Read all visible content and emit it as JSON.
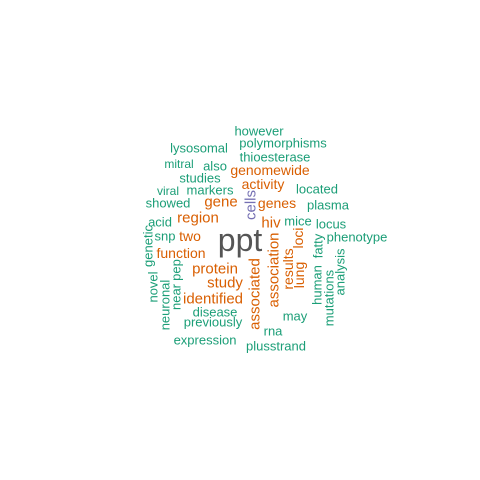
{
  "colors": {
    "teal": "#1b9e77",
    "orange": "#d95f02",
    "purple": "#7570b3",
    "gray": "#555555"
  },
  "words": [
    {
      "id": "ppt",
      "text": "ppt",
      "color": "gray"
    },
    {
      "id": "however",
      "text": "however",
      "color": "teal"
    },
    {
      "id": "polymorphisms",
      "text": "polymorphisms",
      "color": "teal"
    },
    {
      "id": "lysosomal",
      "text": "lysosomal",
      "color": "teal"
    },
    {
      "id": "thioesterase",
      "text": "thioesterase",
      "color": "teal"
    },
    {
      "id": "mitral",
      "text": "mitral",
      "color": "teal"
    },
    {
      "id": "also",
      "text": "also",
      "color": "teal"
    },
    {
      "id": "genomewide",
      "text": "genomewide",
      "color": "orange"
    },
    {
      "id": "studies",
      "text": "studies",
      "color": "teal"
    },
    {
      "id": "activity",
      "text": "activity",
      "color": "orange"
    },
    {
      "id": "viral",
      "text": "viral",
      "color": "teal"
    },
    {
      "id": "markers",
      "text": "markers",
      "color": "teal"
    },
    {
      "id": "located",
      "text": "located",
      "color": "teal"
    },
    {
      "id": "showed",
      "text": "showed",
      "color": "teal"
    },
    {
      "id": "gene",
      "text": "gene",
      "color": "orange"
    },
    {
      "id": "genes",
      "text": "genes",
      "color": "orange"
    },
    {
      "id": "plasma",
      "text": "plasma",
      "color": "teal"
    },
    {
      "id": "region",
      "text": "region",
      "color": "orange"
    },
    {
      "id": "cells",
      "text": "cells",
      "color": "purple"
    },
    {
      "id": "acid",
      "text": "acid",
      "color": "teal"
    },
    {
      "id": "hiv",
      "text": "hiv",
      "color": "orange"
    },
    {
      "id": "mice",
      "text": "mice",
      "color": "teal"
    },
    {
      "id": "locus",
      "text": "locus",
      "color": "teal"
    },
    {
      "id": "snp",
      "text": "snp",
      "color": "teal"
    },
    {
      "id": "two",
      "text": "two",
      "color": "orange"
    },
    {
      "id": "genetic",
      "text": "genetic",
      "color": "teal"
    },
    {
      "id": "loci",
      "text": "loci",
      "color": "orange"
    },
    {
      "id": "phenotype",
      "text": "phenotype",
      "color": "teal"
    },
    {
      "id": "function",
      "text": "function",
      "color": "orange"
    },
    {
      "id": "fatty",
      "text": "fatty",
      "color": "teal"
    },
    {
      "id": "association",
      "text": "association",
      "color": "orange"
    },
    {
      "id": "pep",
      "text": "pep",
      "color": "teal"
    },
    {
      "id": "protein",
      "text": "protein",
      "color": "orange"
    },
    {
      "id": "results",
      "text": "results",
      "color": "orange"
    },
    {
      "id": "novel",
      "text": "novel",
      "color": "teal"
    },
    {
      "id": "associated",
      "text": "associated",
      "color": "orange"
    },
    {
      "id": "lung",
      "text": "lung",
      "color": "orange"
    },
    {
      "id": "human",
      "text": "human",
      "color": "teal"
    },
    {
      "id": "analysis",
      "text": "analysis",
      "color": "teal"
    },
    {
      "id": "study",
      "text": "study",
      "color": "orange"
    },
    {
      "id": "neuronal",
      "text": "neuronal",
      "color": "teal"
    },
    {
      "id": "near",
      "text": "near",
      "color": "teal"
    },
    {
      "id": "identified",
      "text": "identified",
      "color": "orange"
    },
    {
      "id": "mutations",
      "text": "mutations",
      "color": "teal"
    },
    {
      "id": "disease",
      "text": "disease",
      "color": "teal"
    },
    {
      "id": "may",
      "text": "may",
      "color": "teal"
    },
    {
      "id": "previously",
      "text": "previously",
      "color": "teal"
    },
    {
      "id": "rna",
      "text": "rna",
      "color": "teal"
    },
    {
      "id": "expression",
      "text": "expression",
      "color": "teal"
    },
    {
      "id": "plusstrand",
      "text": "plusstrand",
      "color": "teal"
    }
  ]
}
